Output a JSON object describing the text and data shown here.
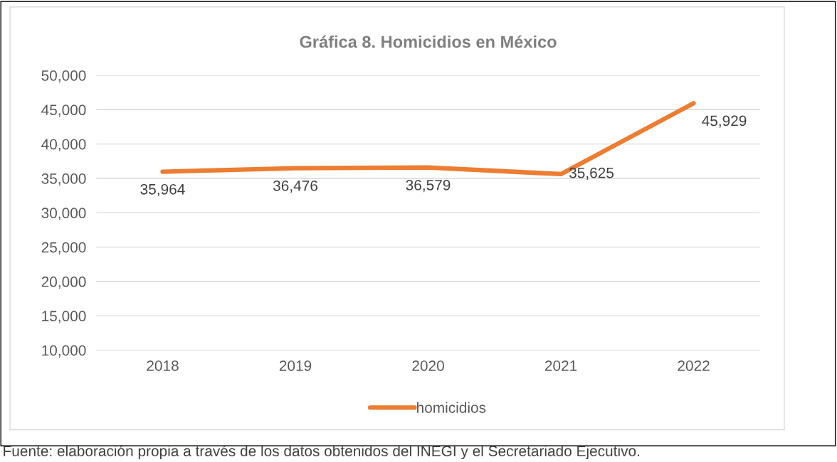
{
  "chart_data": {
    "type": "line",
    "title": "Gráfica 8. Homicidios en México",
    "categories": [
      "2018",
      "2019",
      "2020",
      "2021",
      "2022"
    ],
    "series": [
      {
        "name": "homicidios",
        "color": "#ed7d31",
        "values": [
          35964,
          36476,
          36579,
          35625,
          45929
        ],
        "value_labels": [
          "35,964",
          "36,476",
          "36,579",
          "35,625",
          "45,929"
        ]
      }
    ],
    "ylim": [
      10000,
      50000
    ],
    "yticks": [
      {
        "value": 10000,
        "label": "10,000"
      },
      {
        "value": 15000,
        "label": "15,000"
      },
      {
        "value": 20000,
        "label": "20,000"
      },
      {
        "value": 25000,
        "label": "25,000"
      },
      {
        "value": 30000,
        "label": "30,000"
      },
      {
        "value": 35000,
        "label": "35,000"
      },
      {
        "value": 40000,
        "label": "40,000"
      },
      {
        "value": 45000,
        "label": "45,000"
      },
      {
        "value": 50000,
        "label": "50,000"
      }
    ],
    "grid": "y",
    "legend": "bottom",
    "marker": "none",
    "line_style": "solid",
    "annotations": [
      "Fuente: elaboración propia a través de los datos obtenidos del INEGI y el Secretariado Ejecutivo."
    ]
  }
}
